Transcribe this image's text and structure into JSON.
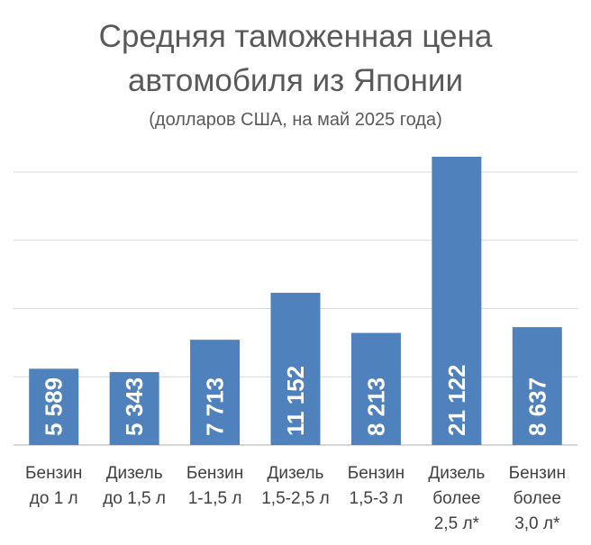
{
  "chart_data": {
    "type": "bar",
    "title_lines": [
      "Средняя таможенная цена",
      "автомобиля из Японии"
    ],
    "subtitle": "(долларов США, на май 2025 года)",
    "categories": [
      [
        "Бензин",
        "до 1 л"
      ],
      [
        "Дизель",
        "до 1,5 л"
      ],
      [
        "Бензин",
        "1-1,5 л"
      ],
      [
        "Дизель",
        "1,5-2,5 л"
      ],
      [
        "Бензин",
        "1,5-3 л"
      ],
      [
        "Дизель",
        "более",
        "2,5 л*"
      ],
      [
        "Бензин",
        "более",
        "3,0 л*"
      ]
    ],
    "values": [
      5589,
      5343,
      7713,
      11152,
      8213,
      21122,
      8637
    ],
    "value_labels": [
      "5 589",
      "5 343",
      "7 713",
      "11 152",
      "8 213",
      "21 122",
      "8 637"
    ],
    "ylim": [
      0,
      21000
    ],
    "grid": true,
    "bar_color": "#4f81bd"
  }
}
